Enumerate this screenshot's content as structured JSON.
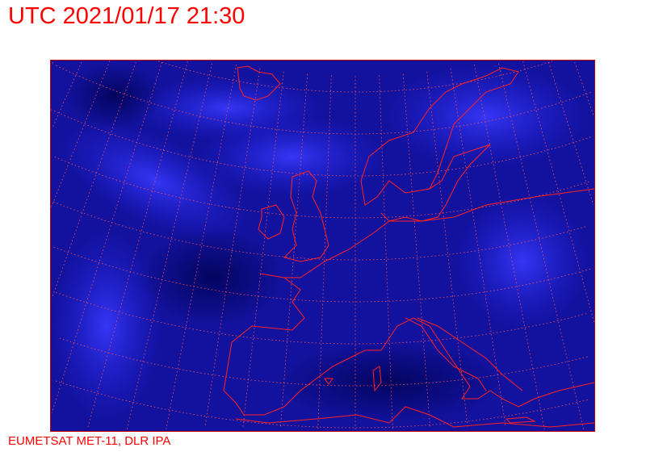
{
  "title": "UTC 2021/01/17 21:30",
  "credit": "EUMETSAT MET-11, DLR IPA",
  "map": {
    "region": "Europe / North Atlantic",
    "imagery": "satellite infrared (blue-tinted)",
    "colors": {
      "background": "#0a0a8c",
      "cloud": "#3030ff",
      "coastline": "#ff2020",
      "graticule": "#ff4040",
      "border": "#c00000"
    }
  }
}
